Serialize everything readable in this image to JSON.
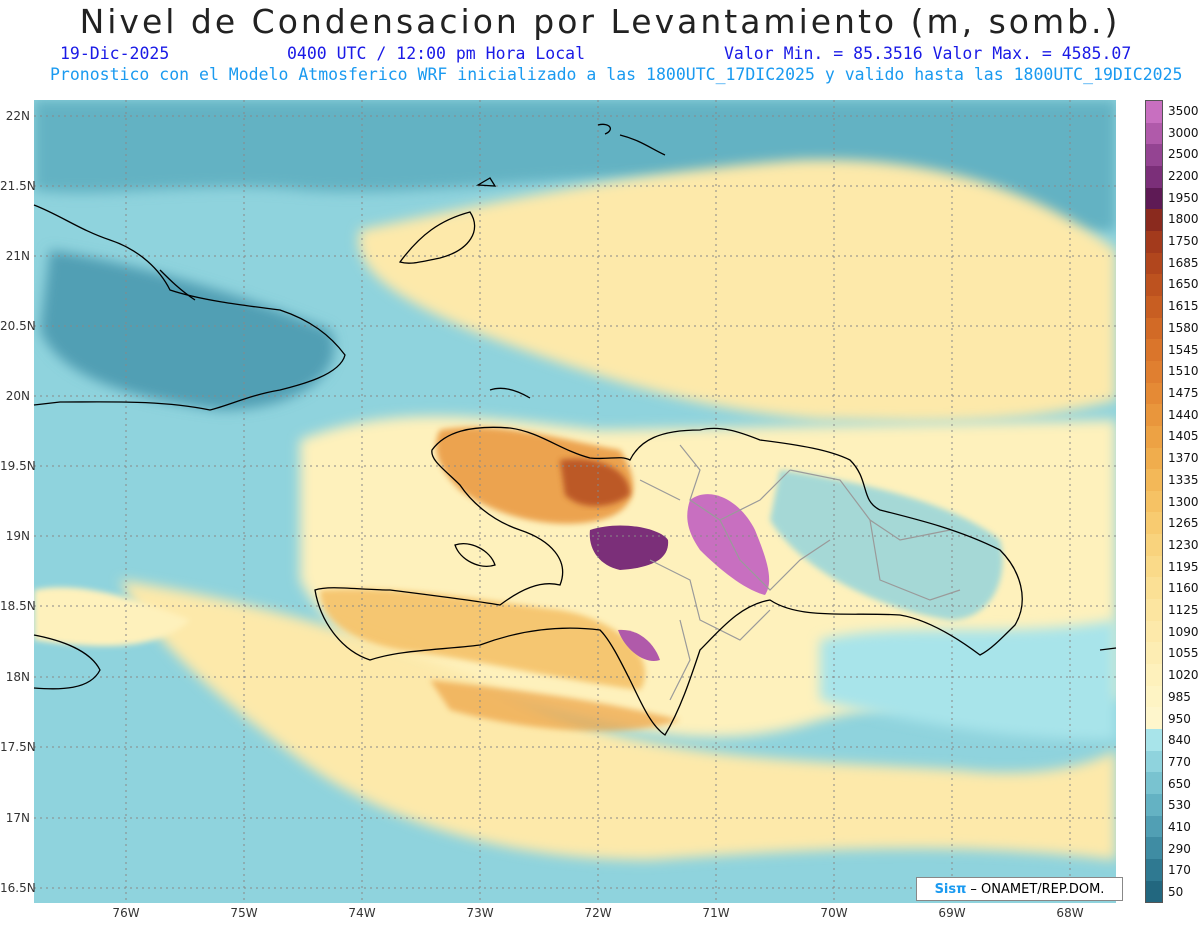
{
  "header": {
    "title": "Nivel de Condensacion por Levantamiento (m, somb.)",
    "date": "19-Dic-2025",
    "time": "0400 UTC / 12:00 pm Hora Local",
    "min_max": "Valor Min. = 85.3516  Valor Max. = 4585.07",
    "forecast_note": "Pronostico con el Modelo Atmosferico WRF inicializado a las 1800UTC_17DIC2025 y valido hasta las  1800UTC_19DIC2025"
  },
  "axes": {
    "lat_labels": [
      "22N",
      "21.5N",
      "21N",
      "20.5N",
      "20N",
      "19.5N",
      "19N",
      "18.5N",
      "18N",
      "17.5N",
      "17N",
      "16.5N"
    ],
    "lon_labels": [
      "76W",
      "75W",
      "74W",
      "73W",
      "72W",
      "71W",
      "70W",
      "69W",
      "68W"
    ]
  },
  "colorbar": {
    "levels": [
      "3500",
      "3000",
      "2500",
      "2200",
      "1950",
      "1800",
      "1750",
      "1685",
      "1650",
      "1615",
      "1580",
      "1545",
      "1510",
      "1475",
      "1440",
      "1405",
      "1370",
      "1335",
      "1300",
      "1265",
      "1230",
      "1195",
      "1160",
      "1125",
      "1090",
      "1055",
      "1020",
      "985",
      "950",
      "840",
      "770",
      "650",
      "530",
      "410",
      "290",
      "170",
      "50"
    ],
    "colors": [
      "#c86fc0",
      "#b05aaa",
      "#944492",
      "#7b2f79",
      "#5e1a55",
      "#8a2a1e",
      "#a33a1c",
      "#b1461d",
      "#bd521f",
      "#c85e22",
      "#d26a26",
      "#da752b",
      "#e07f30",
      "#e58a35",
      "#e9963c",
      "#eda244",
      "#f0ad4d",
      "#f3b858",
      "#f6c264",
      "#f8cb70",
      "#f9d37d",
      "#fada89",
      "#fbe095",
      "#fce5a0",
      "#fde9aa",
      "#fdedb3",
      "#fef1bc",
      "#fef4c4",
      "#fef6cc",
      "#a8e4ea",
      "#8fd3dd",
      "#79c3d0",
      "#64b2c3",
      "#519fb4",
      "#3f8ca3",
      "#2f7991",
      "#22677f"
    ]
  },
  "credit": {
    "logo": "Sisπ",
    "text": "– ONAMET/REP.DOM."
  },
  "colors": {
    "land_outline": "#000000",
    "province_lines": "#9a9a9a",
    "grid": "#888888"
  }
}
